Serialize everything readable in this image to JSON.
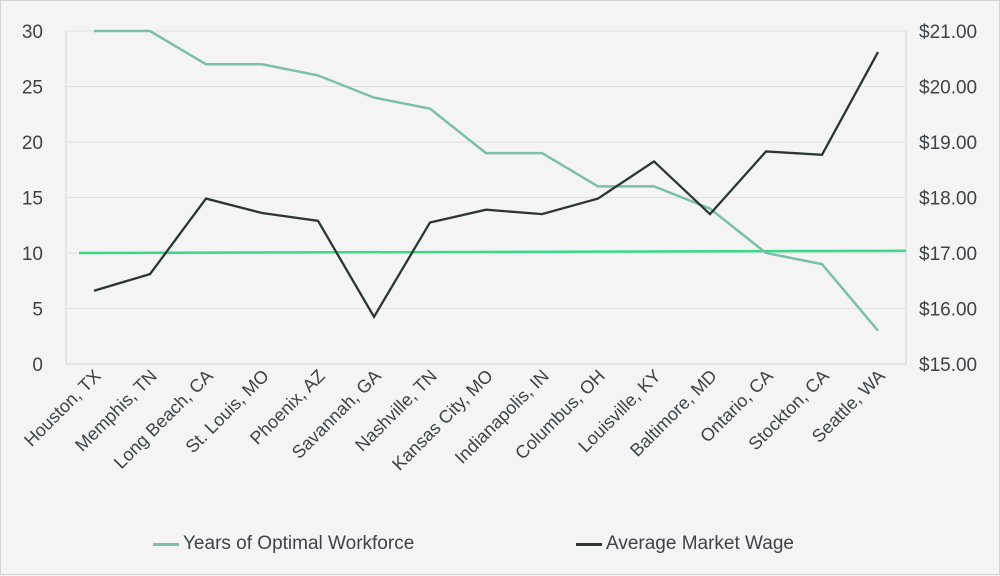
{
  "chart_data": {
    "type": "line",
    "categories": [
      "Houston, TX",
      "Memphis, TN",
      "Long Beach, CA",
      "St. Louis, MO",
      "Phoenix, AZ",
      "Savannah, GA",
      "Nashville, TN",
      "Kansas City, MO",
      "Indianapolis, IN",
      "Columbus, OH",
      "Louisville, KY",
      "Baltimore, MD",
      "Ontario, CA",
      "Stockton, CA",
      "Seattle, WA"
    ],
    "series": [
      {
        "name": "Years of Optimal Workforce",
        "axis": "left",
        "color": "#7dbfa6",
        "values": [
          30,
          30,
          27,
          27,
          26,
          24,
          23,
          19,
          19,
          16,
          16,
          14,
          10,
          9,
          3
        ]
      },
      {
        "name": "Average Market Wage",
        "axis": "right",
        "color": "#2b3532",
        "values": [
          16.32,
          16.62,
          17.98,
          17.72,
          17.58,
          15.85,
          17.55,
          17.78,
          17.7,
          17.98,
          18.65,
          17.7,
          18.83,
          18.77,
          20.62
        ]
      }
    ],
    "reference_line": {
      "color": "#3ad98a",
      "axis": "left",
      "start_value": 10.0,
      "end_value": 10.2
    },
    "y_left": {
      "ylim": [
        0,
        30
      ],
      "ticks": [
        "0",
        "5",
        "10",
        "15",
        "20",
        "25",
        "30"
      ],
      "tick_values": [
        0,
        5,
        10,
        15,
        20,
        25,
        30
      ]
    },
    "y_right": {
      "ylim": [
        15,
        21
      ],
      "ticks": [
        "$15.00",
        "$16.00",
        "$17.00",
        "$18.00",
        "$19.00",
        "$20.00",
        "$21.00"
      ],
      "tick_values": [
        15,
        16,
        17,
        18,
        19,
        20,
        21
      ]
    },
    "grid": true,
    "legend_position": "bottom",
    "title": "",
    "xlabel": "",
    "ylabel": ""
  },
  "legend": {
    "series_1_label": "Years of Optimal Workforce",
    "series_2_label": "Average Market Wage"
  }
}
